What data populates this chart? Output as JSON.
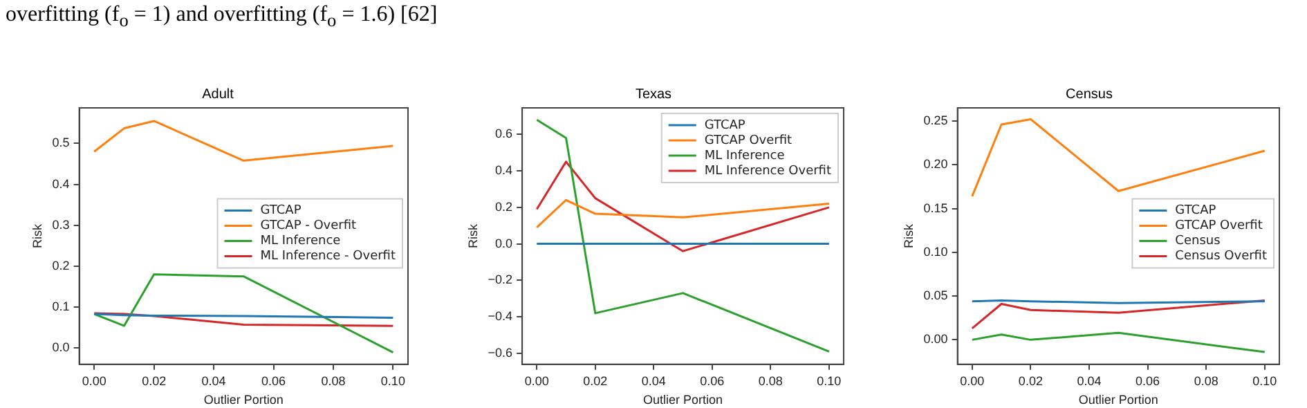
{
  "chart_data": [
    {
      "type": "line",
      "title": "Adult",
      "xlabel": "Outlier Portion",
      "ylabel": "Risk",
      "annotations": [
        "overfitting (f$_{o}$ = 1) and overfitting (f$_{o}$ = 1.6) [62]"
      ],
      "x": [
        0,
        0.01,
        0.02,
        0.05,
        0.1
      ],
      "xlim": [
        -0.005,
        0.105
      ],
      "ylim": [
        -0.04,
        0.587
      ],
      "xticks": [
        {
          "value": 0,
          "label": "0.00"
        },
        {
          "value": 0.02,
          "label": "0.02"
        },
        {
          "value": 0.04,
          "label": "0.04"
        },
        {
          "value": 0.06,
          "label": "0.06"
        },
        {
          "value": 0.08,
          "label": "0.08"
        },
        {
          "value": 0.1,
          "label": "0.10"
        }
      ],
      "yticks": [
        {
          "value": 0,
          "label": "0.0"
        },
        {
          "value": 0.1,
          "label": "0.1"
        },
        {
          "value": 0.2,
          "label": "0.2"
        },
        {
          "value": 0.3,
          "label": "0.3"
        },
        {
          "value": 0.4,
          "label": "0.4"
        },
        {
          "value": 0.5,
          "label": "0.5"
        }
      ],
      "grid": false,
      "legend": "right",
      "marker": "none",
      "line_style": "solid",
      "series": [
        {
          "name": "GTCAP",
          "color": "#1f77b4",
          "values": [
            0.083,
            0.08,
            0.079,
            0.078,
            0.074
          ]
        },
        {
          "name": "GTCAP - Overfit",
          "color": "#ff7f0e",
          "values": [
            0.48,
            0.537,
            0.555,
            0.458,
            0.494
          ]
        },
        {
          "name": "ML Inference",
          "color": "#2ca02c",
          "values": [
            0.083,
            0.054,
            0.18,
            0.175,
            -0.011
          ]
        },
        {
          "name": "ML Inference - Overfit",
          "color": "#d62728",
          "values": [
            0.085,
            0.083,
            0.078,
            0.057,
            0.054
          ]
        }
      ]
    },
    {
      "type": "line",
      "title": "Texas",
      "xlabel": "Outlier Portion",
      "ylabel": "Risk",
      "x": [
        0,
        0.01,
        0.02,
        0.05,
        0.1
      ],
      "xlim": [
        -0.005,
        0.105
      ],
      "ylim": [
        -0.66,
        0.745
      ],
      "xticks": [
        {
          "value": 0,
          "label": "0.00"
        },
        {
          "value": 0.02,
          "label": "0.02"
        },
        {
          "value": 0.04,
          "label": "0.04"
        },
        {
          "value": 0.06,
          "label": "0.06"
        },
        {
          "value": 0.08,
          "label": "0.08"
        },
        {
          "value": 0.1,
          "label": "0.10"
        }
      ],
      "yticks": [
        {
          "value": -0.6,
          "label": "−0.6"
        },
        {
          "value": -0.4,
          "label": "−0.4"
        },
        {
          "value": -0.2,
          "label": "−0.2"
        },
        {
          "value": 0,
          "label": "0.0"
        },
        {
          "value": 0.2,
          "label": "0.2"
        },
        {
          "value": 0.4,
          "label": "0.4"
        },
        {
          "value": 0.6,
          "label": "0.6"
        }
      ],
      "grid": false,
      "legend": "top right",
      "marker": "none",
      "line_style": "solid",
      "series": [
        {
          "name": "GTCAP",
          "color": "#1f77b4",
          "values": [
            0,
            0,
            0,
            0,
            0
          ]
        },
        {
          "name": "GTCAP Overfit",
          "color": "#ff7f0e",
          "values": [
            0.09,
            0.24,
            0.165,
            0.145,
            0.22
          ]
        },
        {
          "name": "ML Inference",
          "color": "#2ca02c",
          "values": [
            0.68,
            0.58,
            -0.38,
            -0.27,
            -0.59
          ]
        },
        {
          "name": "ML Inference Overfit",
          "color": "#d62728",
          "values": [
            0.19,
            0.45,
            0.25,
            -0.04,
            0.2
          ]
        }
      ]
    },
    {
      "type": "line",
      "title": "Census",
      "xlabel": "Outlier Portion",
      "ylabel": "Risk",
      "x": [
        0,
        0.01,
        0.02,
        0.05,
        0.1
      ],
      "xlim": [
        -0.005,
        0.105
      ],
      "ylim": [
        -0.028,
        0.265
      ],
      "xticks": [
        {
          "value": 0,
          "label": "0.00"
        },
        {
          "value": 0.02,
          "label": "0.02"
        },
        {
          "value": 0.04,
          "label": "0.04"
        },
        {
          "value": 0.06,
          "label": "0.06"
        },
        {
          "value": 0.08,
          "label": "0.08"
        },
        {
          "value": 0.1,
          "label": "0.10"
        }
      ],
      "yticks": [
        {
          "value": 0,
          "label": "0.00"
        },
        {
          "value": 0.05,
          "label": "0.05"
        },
        {
          "value": 0.1,
          "label": "0.10"
        },
        {
          "value": 0.15,
          "label": "0.15"
        },
        {
          "value": 0.2,
          "label": "0.20"
        },
        {
          "value": 0.25,
          "label": "0.25"
        }
      ],
      "grid": false,
      "legend": "right",
      "marker": "none",
      "line_style": "solid",
      "series": [
        {
          "name": "GTCAP",
          "color": "#1f77b4",
          "values": [
            0.044,
            0.045,
            0.044,
            0.042,
            0.044
          ]
        },
        {
          "name": "GTCAP Overfit",
          "color": "#ff7f0e",
          "values": [
            0.164,
            0.246,
            0.252,
            0.17,
            0.216
          ]
        },
        {
          "name": "Census",
          "color": "#2ca02c",
          "values": [
            0,
            0.006,
            0,
            0.008,
            -0.014
          ]
        },
        {
          "name": "Census Overfit",
          "color": "#d62728",
          "values": [
            0.013,
            0.041,
            0.034,
            0.031,
            0.045
          ]
        }
      ]
    }
  ]
}
